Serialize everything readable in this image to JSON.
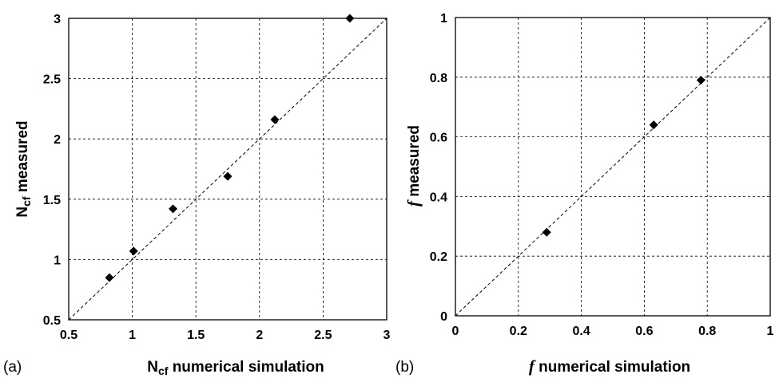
{
  "chart_data": [
    {
      "type": "scatter",
      "panel_label": "(a)",
      "xlabel": {
        "main": "N",
        "sub": "cf",
        "rest": " numerical simulation"
      },
      "ylabel": {
        "main": "N",
        "sub": "cf",
        "rest": " measured"
      },
      "xlim": [
        0.5,
        3
      ],
      "ylim": [
        0.5,
        3
      ],
      "xticks": [
        "0.5",
        "1",
        "1.5",
        "2",
        "2.5",
        "3"
      ],
      "yticks": [
        "0.5",
        "1",
        "1.5",
        "2",
        "2.5",
        "3"
      ],
      "grid": true,
      "reference_line": "y = x (dashed)",
      "marker": "diamond",
      "points": [
        {
          "x": 0.82,
          "y": 0.85
        },
        {
          "x": 1.01,
          "y": 1.07
        },
        {
          "x": 1.32,
          "y": 1.42
        },
        {
          "x": 1.75,
          "y": 1.69
        },
        {
          "x": 2.12,
          "y": 2.16
        },
        {
          "x": 2.71,
          "y": 3.0
        }
      ]
    },
    {
      "type": "scatter",
      "panel_label": "(b)",
      "xlabel": {
        "main": "f",
        "sub": "",
        "rest": " numerical simulation"
      },
      "ylabel": {
        "main": "f",
        "sub": "",
        "rest": " measured"
      },
      "xlim": [
        0,
        1
      ],
      "ylim": [
        0,
        1
      ],
      "xticks": [
        "0",
        "0.2",
        "0.4",
        "0.6",
        "0.8",
        "1"
      ],
      "yticks": [
        "0",
        "0.2",
        "0.4",
        "0.6",
        "0.8",
        "1"
      ],
      "grid": true,
      "reference_line": "y = x (dashed)",
      "marker": "diamond",
      "points": [
        {
          "x": 0.29,
          "y": 0.28
        },
        {
          "x": 0.63,
          "y": 0.64
        },
        {
          "x": 0.78,
          "y": 0.79
        }
      ]
    }
  ]
}
